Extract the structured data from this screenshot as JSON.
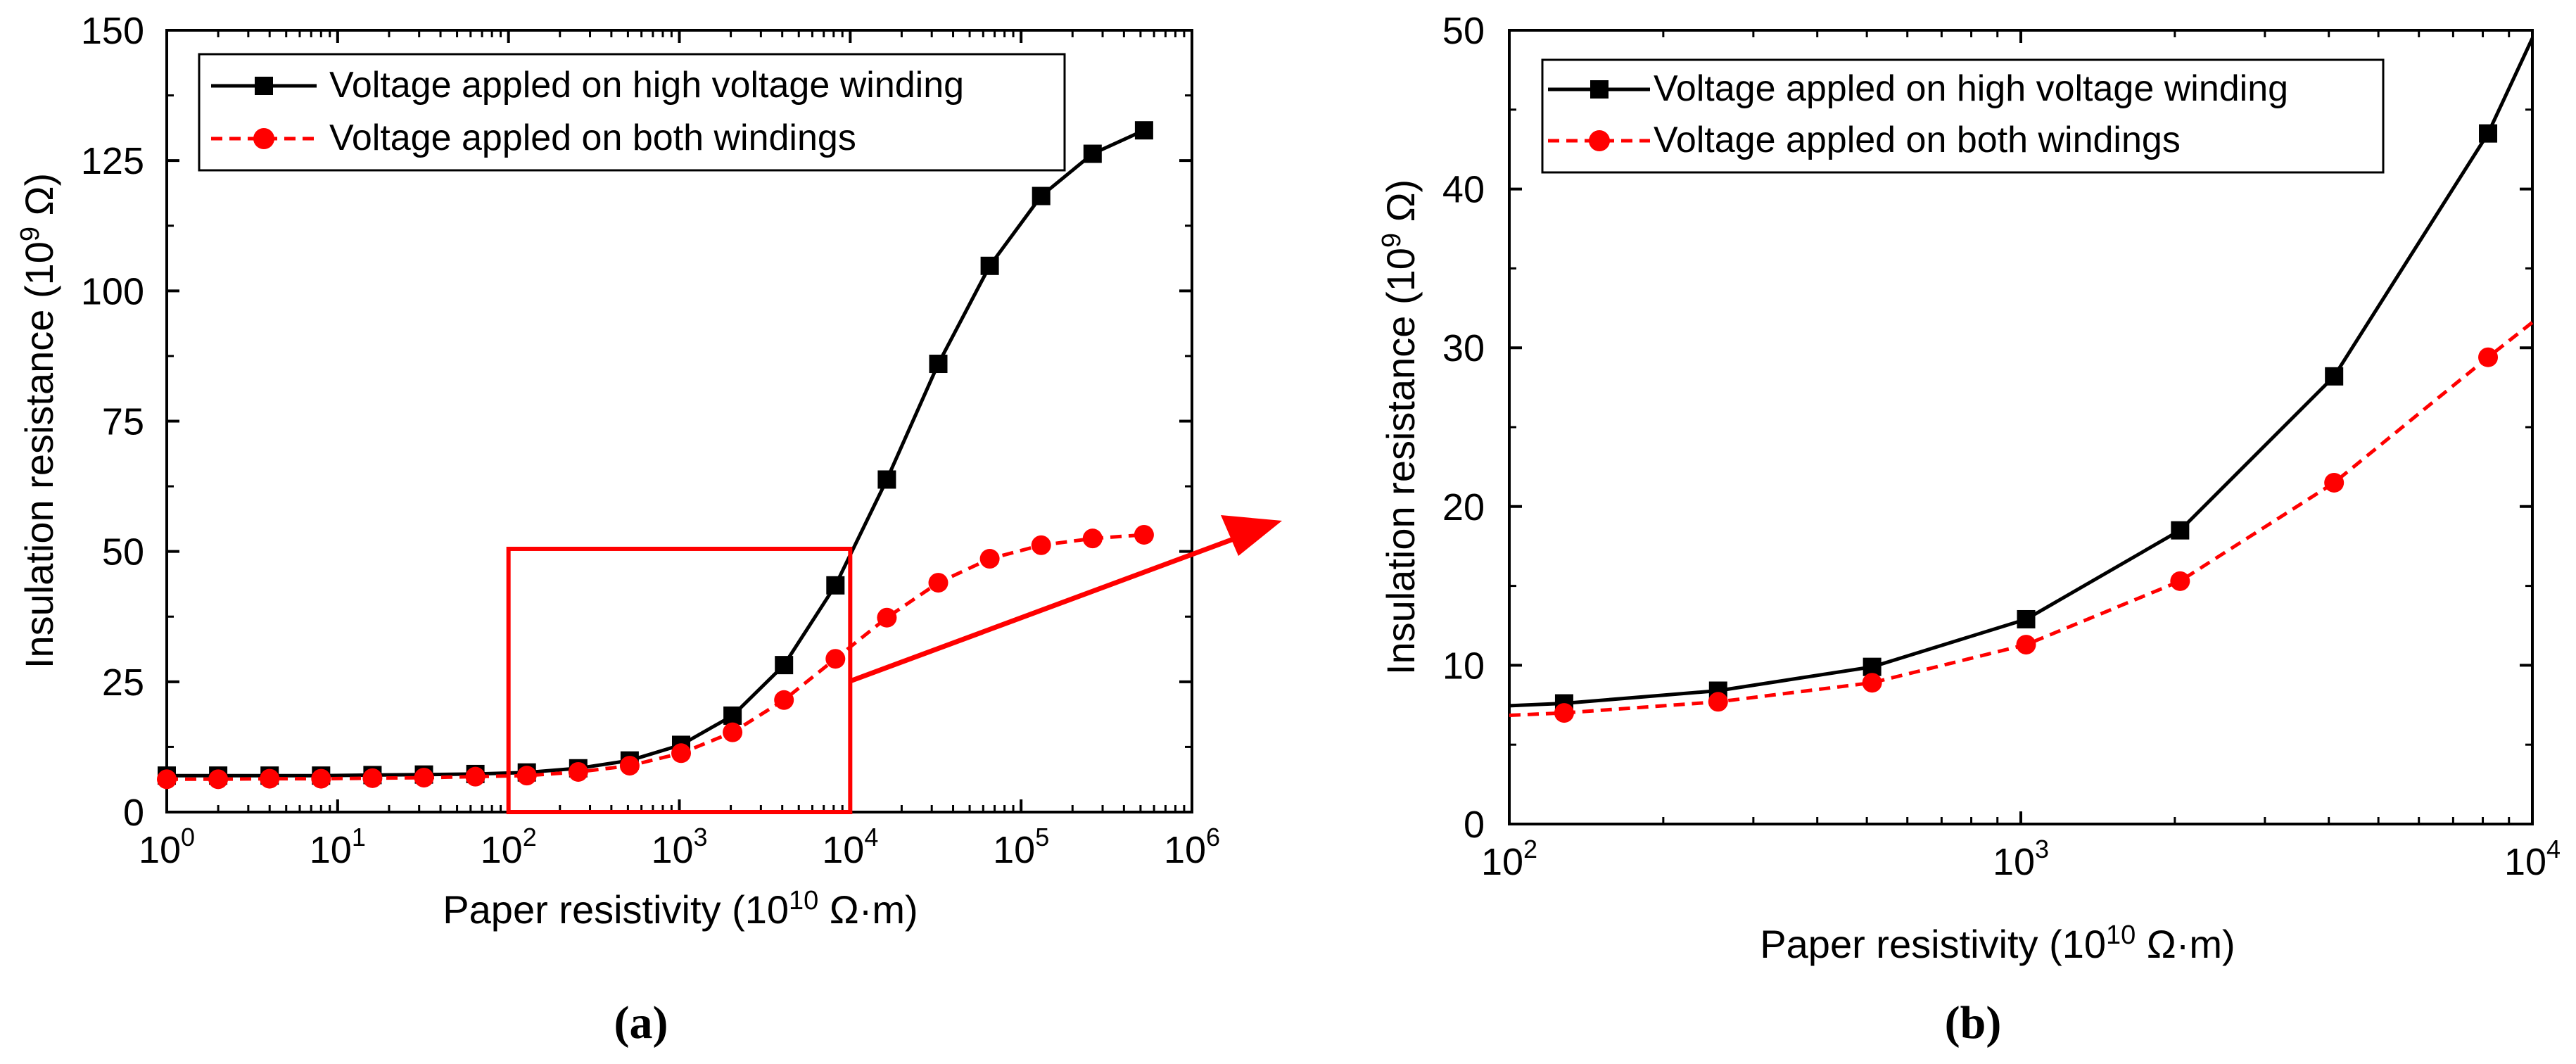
{
  "chart_data": [
    {
      "panel": "a",
      "type": "line",
      "title": "",
      "panel_label": "(a)",
      "xlabel": "Paper resistivity (10^10 Ω·m)",
      "ylabel": "Insulation resistance (10^9 Ω)",
      "xscale": "log",
      "xlim": [
        1,
        1000000
      ],
      "ylim": [
        0,
        150
      ],
      "grid": false,
      "legend_position": "top-left",
      "x_tick_exponents": [
        0,
        1,
        2,
        3,
        4,
        5,
        6
      ],
      "y_ticks": [
        0,
        25,
        50,
        75,
        100,
        125,
        150
      ],
      "series": [
        {
          "name": "Voltage appled on high voltage winding",
          "color": "#000000",
          "marker": "square",
          "line": "solid",
          "x": [
            1,
            2,
            4,
            8,
            16,
            32,
            64,
            128,
            256,
            512,
            1024,
            2048,
            4096,
            8192,
            16384,
            32768,
            65536,
            131072,
            262144,
            524288
          ],
          "y": [
            7.0,
            7.0,
            7.0,
            7.0,
            7.1,
            7.2,
            7.3,
            7.6,
            8.4,
            9.9,
            12.9,
            18.5,
            28.2,
            43.5,
            63.8,
            86.0,
            104.8,
            118.2,
            126.3,
            130.8
          ]
        },
        {
          "name": "Voltage appled on both windings",
          "color": "#ff0000",
          "marker": "circle",
          "line": "dashed",
          "x": [
            1,
            2,
            4,
            8,
            16,
            32,
            64,
            128,
            256,
            512,
            1024,
            2048,
            4096,
            8192,
            16384,
            32768,
            65536,
            131072,
            262144,
            524288
          ],
          "y": [
            6.3,
            6.3,
            6.4,
            6.4,
            6.5,
            6.6,
            6.8,
            7.0,
            7.7,
            8.9,
            11.3,
            15.3,
            21.5,
            29.4,
            37.3,
            44.0,
            48.6,
            51.2,
            52.5,
            53.2
          ]
        }
      ],
      "annotations": [
        {
          "type": "rectangle",
          "color": "#ff0000",
          "x_range": [
            100,
            10000
          ],
          "y_range": [
            0,
            50.5
          ]
        },
        {
          "type": "arrow",
          "color": "#ff0000",
          "description": "zoom arrow pointing to panel (b)"
        }
      ]
    },
    {
      "panel": "b",
      "type": "line",
      "title": "",
      "panel_label": "(b)",
      "xlabel": "Paper resistivity (10^10 Ω·m)",
      "ylabel": "Insulation resistance (10^9 Ω)",
      "xscale": "log",
      "xlim": [
        100,
        10000
      ],
      "ylim": [
        0,
        50
      ],
      "grid": false,
      "legend_position": "top-left",
      "x_tick_exponents": [
        2,
        3,
        4
      ],
      "y_ticks": [
        0,
        10,
        20,
        30,
        40,
        50
      ],
      "series": [
        {
          "name": "Voltage appled on high voltage winding",
          "color": "#000000",
          "marker": "square",
          "line": "solid",
          "x": [
            100,
            128,
            256,
            512,
            1024,
            2048,
            4096,
            8192,
            10000
          ],
          "y": [
            7.45,
            7.6,
            8.4,
            9.9,
            12.9,
            18.5,
            28.2,
            43.5,
            49.5
          ],
          "marker_mask": [
            false,
            true,
            true,
            true,
            true,
            true,
            true,
            true,
            false
          ]
        },
        {
          "name": "Voltage appled on both windings",
          "color": "#ff0000",
          "marker": "circle",
          "line": "dashed",
          "x": [
            100,
            128,
            256,
            512,
            1024,
            2048,
            4096,
            8192,
            10000
          ],
          "y": [
            6.85,
            7.0,
            7.7,
            8.9,
            11.3,
            15.3,
            21.5,
            29.4,
            31.6
          ],
          "marker_mask": [
            false,
            true,
            true,
            true,
            true,
            true,
            true,
            true,
            false
          ]
        }
      ]
    }
  ]
}
